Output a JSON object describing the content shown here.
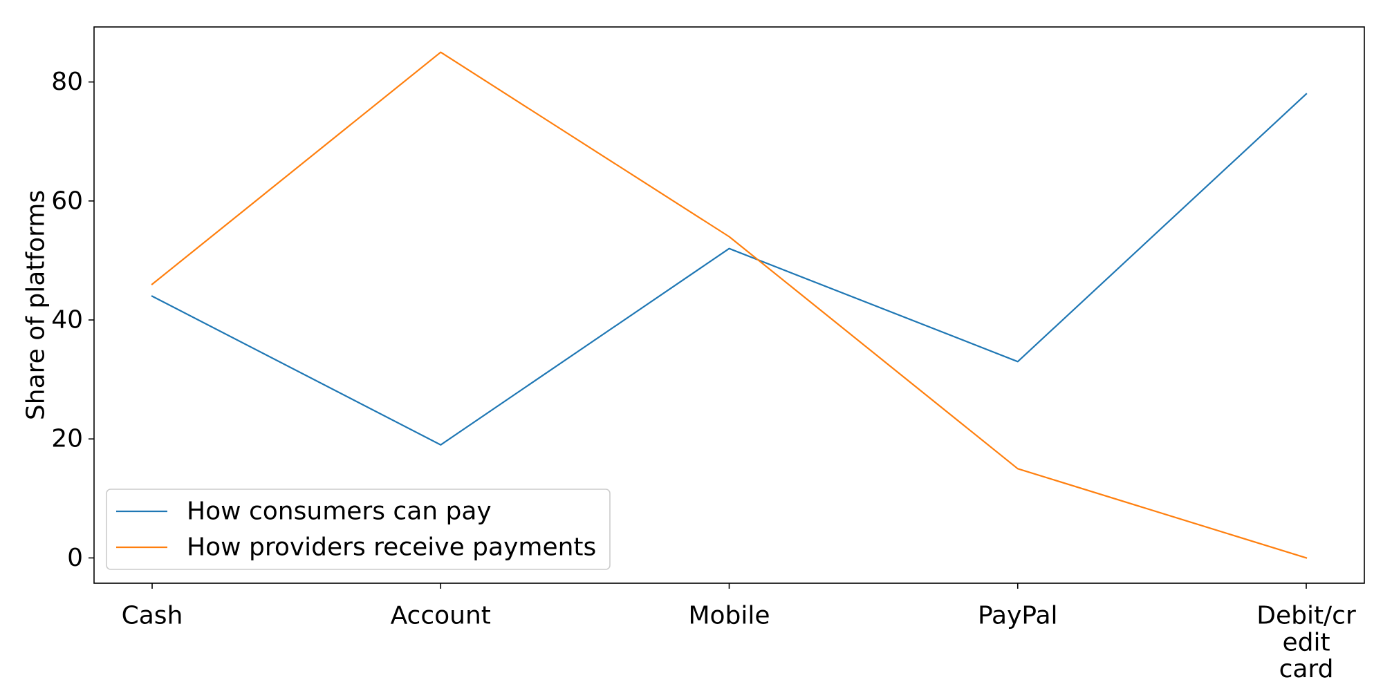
{
  "chart_data": {
    "type": "line",
    "categories": [
      "Cash",
      "Account",
      "Mobile",
      "PayPal",
      "Debit/credit card"
    ],
    "category_label_lines": [
      [
        "Cash"
      ],
      [
        "Account"
      ],
      [
        "Mobile"
      ],
      [
        "PayPal"
      ],
      [
        "Debit/cr",
        "edit",
        "card"
      ]
    ],
    "series": [
      {
        "name": "How consumers can pay",
        "color": "#1f77b4",
        "values": [
          44,
          19,
          52,
          33,
          78
        ]
      },
      {
        "name": "How providers receive payments",
        "color": "#ff7f0e",
        "values": [
          46,
          85,
          54,
          15,
          0
        ]
      }
    ],
    "xlabel": "",
    "ylabel": "Share of platforms",
    "ylim": [
      -4.25,
      89.25
    ],
    "yticks": [
      0,
      20,
      40,
      60,
      80
    ],
    "grid": false,
    "legend_position": "lower-left"
  }
}
